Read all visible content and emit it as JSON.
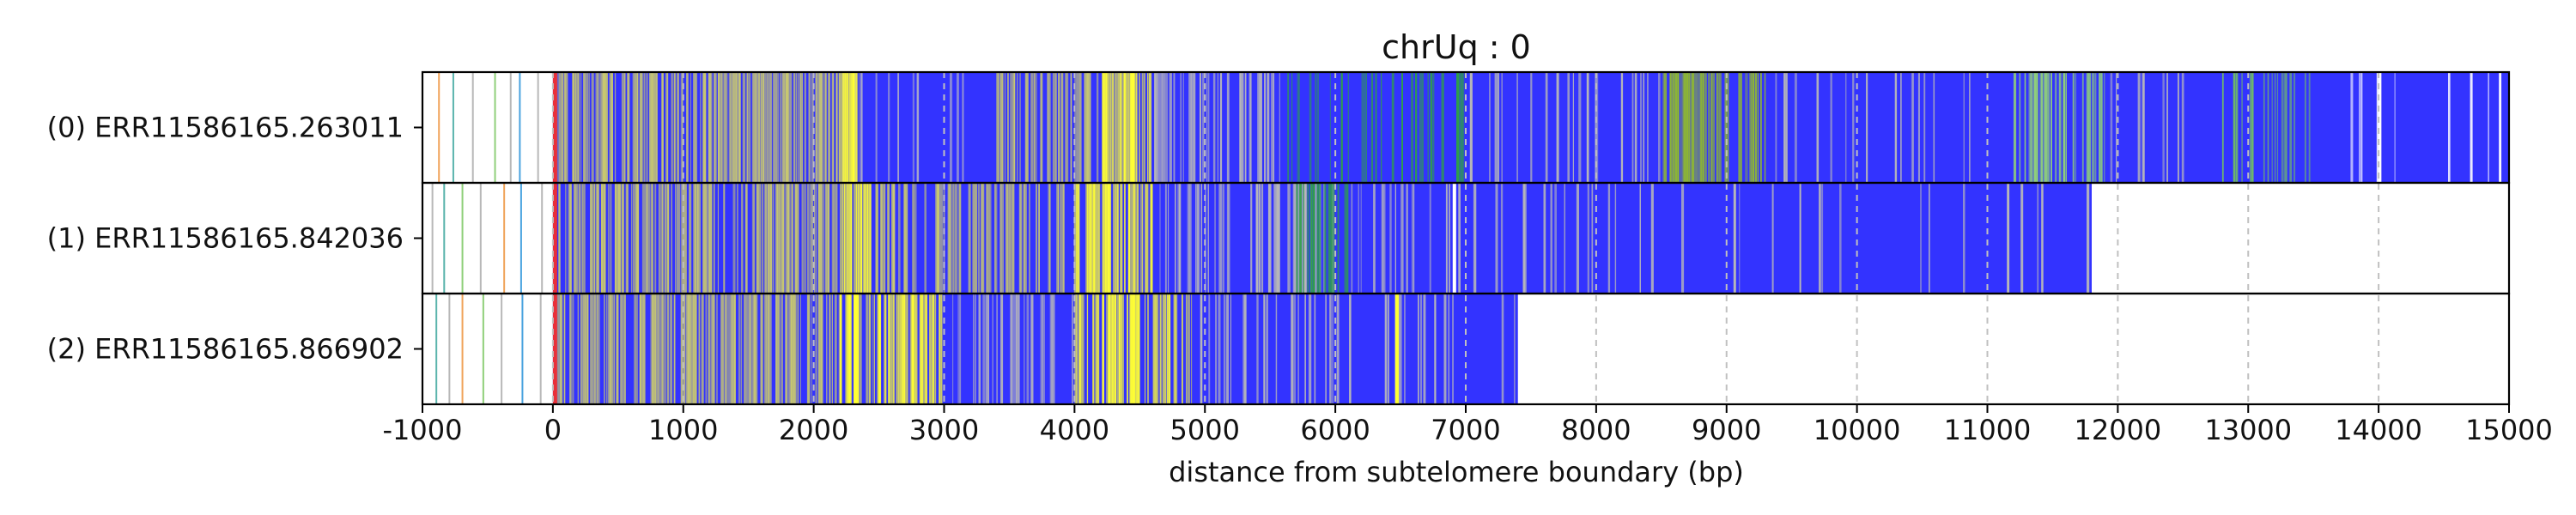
{
  "chart_data": {
    "type": "heatmap",
    "title": "chrUq : 0",
    "xlabel": "distance from subtelomere boundary (bp)",
    "ylabel": "",
    "xlim": [
      -1000,
      15000
    ],
    "xticks": [
      -1000,
      0,
      1000,
      2000,
      3000,
      4000,
      5000,
      6000,
      7000,
      8000,
      9000,
      10000,
      11000,
      12000,
      13000,
      14000,
      15000
    ],
    "tick_labels": [
      "-1000",
      "0",
      "1000",
      "2000",
      "3000",
      "4000",
      "5000",
      "6000",
      "7000",
      "8000",
      "9000",
      "10000",
      "11000",
      "12000",
      "13000",
      "14000",
      "15000"
    ],
    "grid": "vertical dashed at each x tick",
    "boundary_marker": {
      "x": 0,
      "color": "#e8303a"
    },
    "colors": {
      "background_segment": "#3333ff",
      "yellow": "#ffff33",
      "green": "#2e9e4a",
      "light_green": "#8fcf7a",
      "grey": "#b8b8b8",
      "teal": "#5ab4ac",
      "sky": "#4aa3df",
      "orange": "#f0a35a",
      "white_gap": "#ffffff",
      "grid": "#c0c0c0",
      "frame": "#000000"
    },
    "reads": [
      {
        "label": "(0) ERR11586165.263011",
        "start": 0,
        "end": 15000,
        "pre_marks": [
          {
            "x": -880,
            "color": "#f0a35a"
          },
          {
            "x": -770,
            "color": "#5ab4ac"
          },
          {
            "x": -620,
            "color": "#b8b8b8"
          },
          {
            "x": -450,
            "color": "#8fcf7a"
          },
          {
            "x": -330,
            "color": "#b8b8b8"
          },
          {
            "x": -260,
            "color": "#4aa3df"
          },
          {
            "x": -120,
            "color": "#b8b8b8"
          }
        ],
        "blocks": [
          {
            "start": 0,
            "end": 2200,
            "color": "#c8c870",
            "density": 0.62
          },
          {
            "start": 2200,
            "end": 3400,
            "color": "#a8a8c8",
            "density": 0.18
          },
          {
            "start": 2200,
            "end": 2350,
            "color": "#ffff33",
            "density": 0.9
          },
          {
            "start": 3400,
            "end": 4200,
            "color": "#c8c870",
            "density": 0.5
          },
          {
            "start": 4200,
            "end": 4600,
            "color": "#ffff33",
            "density": 0.7
          },
          {
            "start": 4600,
            "end": 5600,
            "color": "#b8b8b8",
            "density": 0.3
          },
          {
            "start": 5600,
            "end": 7000,
            "color": "#2e9e4a",
            "density": 0.3
          },
          {
            "start": 7000,
            "end": 8600,
            "color": "#b8b8b8",
            "density": 0.12
          },
          {
            "start": 8500,
            "end": 9300,
            "color": "#8fb830",
            "density": 0.55
          },
          {
            "start": 9300,
            "end": 11200,
            "color": "#b8b8b8",
            "density": 0.1
          },
          {
            "start": 11200,
            "end": 11900,
            "color": "#8fcf7a",
            "density": 0.4
          },
          {
            "start": 11900,
            "end": 12800,
            "color": "#b8b8b8",
            "density": 0.08
          },
          {
            "start": 12800,
            "end": 13500,
            "color": "#6fb86a",
            "density": 0.4
          },
          {
            "start": 13500,
            "end": 15000,
            "color": "#ffffff",
            "density": 0.14
          }
        ],
        "solid_marks": [
          {
            "x": 13995,
            "color": "#ffffff"
          }
        ]
      },
      {
        "label": "(1) ERR11586165.842036",
        "start": 0,
        "end": 11800,
        "pre_marks": [
          {
            "x": -930,
            "color": "#b8b8b8"
          },
          {
            "x": -840,
            "color": "#5ab4ac"
          },
          {
            "x": -700,
            "color": "#8fcf7a"
          },
          {
            "x": -560,
            "color": "#b8b8b8"
          },
          {
            "x": -380,
            "color": "#f0a35a"
          },
          {
            "x": -250,
            "color": "#4aa3df"
          },
          {
            "x": -90,
            "color": "#b8b8b8"
          }
        ],
        "blocks": [
          {
            "start": 0,
            "end": 2200,
            "color": "#c8c870",
            "density": 0.6
          },
          {
            "start": 2200,
            "end": 2500,
            "color": "#ffff33",
            "density": 0.85
          },
          {
            "start": 2500,
            "end": 4000,
            "color": "#c8c870",
            "density": 0.35
          },
          {
            "start": 4000,
            "end": 4600,
            "color": "#ffff33",
            "density": 0.7
          },
          {
            "start": 4600,
            "end": 6000,
            "color": "#b8b8b8",
            "density": 0.3
          },
          {
            "start": 5700,
            "end": 6100,
            "color": "#2e9e4a",
            "density": 0.5
          },
          {
            "start": 6100,
            "end": 8400,
            "color": "#b8b8b8",
            "density": 0.2
          },
          {
            "start": 8400,
            "end": 11800,
            "color": "#b8b8b8",
            "density": 0.06
          }
        ],
        "solid_marks": [
          {
            "x": 6900,
            "color": "#ffffff"
          }
        ]
      },
      {
        "label": "(2) ERR11586165.866902",
        "start": 0,
        "end": 7400,
        "pre_marks": [
          {
            "x": -900,
            "color": "#5ab4ac"
          },
          {
            "x": -800,
            "color": "#b8b8b8"
          },
          {
            "x": -700,
            "color": "#f0a35a"
          },
          {
            "x": -540,
            "color": "#8fcf7a"
          },
          {
            "x": -400,
            "color": "#b8b8b8"
          },
          {
            "x": -240,
            "color": "#4aa3df"
          },
          {
            "x": -100,
            "color": "#b8b8b8"
          }
        ],
        "blocks": [
          {
            "start": 0,
            "end": 2200,
            "color": "#c8c870",
            "density": 0.6
          },
          {
            "start": 2200,
            "end": 3000,
            "color": "#ffff33",
            "density": 0.7
          },
          {
            "start": 3000,
            "end": 4000,
            "color": "#b8b8b8",
            "density": 0.3
          },
          {
            "start": 4000,
            "end": 4900,
            "color": "#ffff33",
            "density": 0.5
          },
          {
            "start": 4900,
            "end": 6000,
            "color": "#b8b8b8",
            "density": 0.2
          },
          {
            "start": 6000,
            "end": 7400,
            "color": "#b8b8b8",
            "density": 0.08
          }
        ],
        "solid_marks": [
          {
            "x": 6460,
            "color": "#ffff33"
          }
        ]
      }
    ]
  }
}
